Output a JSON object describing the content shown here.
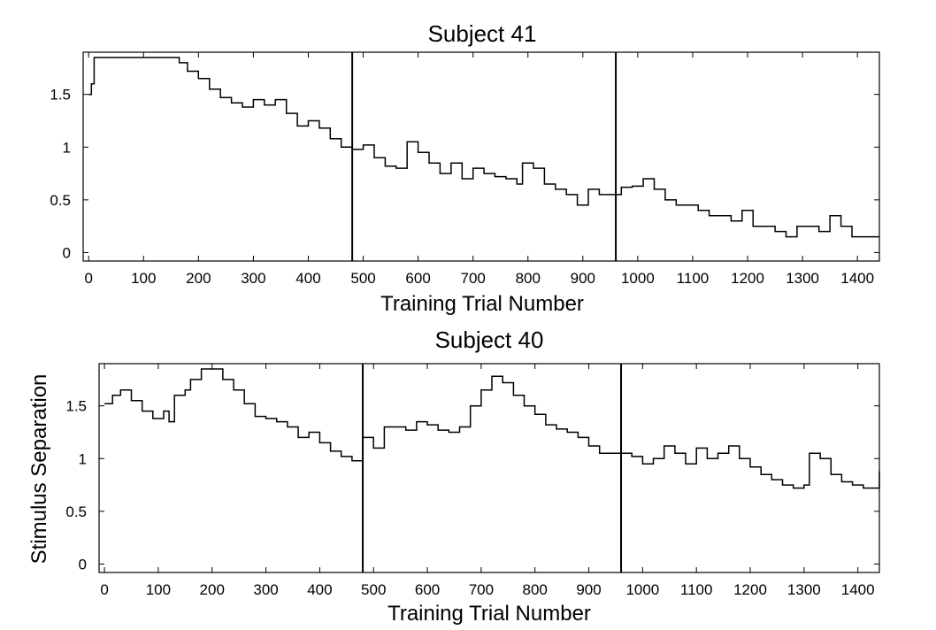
{
  "chart_data": [
    {
      "type": "line",
      "title": "Subject 41",
      "xlabel": "Training Trial Number",
      "ylabel": "",
      "xlim": [
        -10,
        1440
      ],
      "ylim": [
        -0.08,
        1.9
      ],
      "xticks": [
        0,
        100,
        200,
        300,
        400,
        500,
        600,
        700,
        800,
        900,
        1000,
        1100,
        1200,
        1300,
        1400
      ],
      "xtick_labels": [
        "0",
        "100",
        "200",
        "300",
        "400",
        "500",
        "600",
        "700",
        "800",
        "900",
        "1000",
        "1100",
        "1200",
        "1300",
        "1400"
      ],
      "yticks": [
        0,
        0.5,
        1,
        1.5
      ],
      "ytick_labels": [
        "0",
        "0.5",
        "1",
        "1.5"
      ],
      "vertical_lines": [
        480,
        960
      ],
      "series": [
        {
          "x": [
            0,
            5,
            10,
            50,
            100,
            150,
            165,
            180,
            200,
            220,
            240,
            260,
            280,
            300,
            320,
            340,
            360,
            380,
            400,
            420,
            440,
            460,
            480,
            500,
            520,
            540,
            560,
            580,
            600,
            620,
            640,
            660,
            680,
            700,
            720,
            740,
            760,
            780,
            790,
            810,
            830,
            850,
            870,
            890,
            910,
            930,
            950,
            970,
            990,
            1010,
            1030,
            1050,
            1070,
            1090,
            1110,
            1130,
            1150,
            1170,
            1190,
            1210,
            1230,
            1250,
            1270,
            1290,
            1310,
            1330,
            1350,
            1370,
            1390,
            1410,
            1440
          ],
          "y": [
            1.5,
            1.6,
            1.85,
            1.85,
            1.85,
            1.85,
            1.8,
            1.72,
            1.65,
            1.55,
            1.47,
            1.42,
            1.38,
            1.45,
            1.4,
            1.45,
            1.32,
            1.2,
            1.25,
            1.18,
            1.08,
            1.0,
            0.98,
            1.02,
            0.9,
            0.82,
            0.8,
            1.05,
            0.95,
            0.85,
            0.75,
            0.85,
            0.7,
            0.8,
            0.75,
            0.72,
            0.7,
            0.65,
            0.85,
            0.8,
            0.65,
            0.6,
            0.55,
            0.45,
            0.6,
            0.55,
            0.55,
            0.62,
            0.63,
            0.7,
            0.6,
            0.5,
            0.45,
            0.45,
            0.4,
            0.35,
            0.35,
            0.3,
            0.4,
            0.25,
            0.25,
            0.2,
            0.15,
            0.25,
            0.25,
            0.2,
            0.35,
            0.25,
            0.15,
            0.15,
            0.15
          ]
        }
      ]
    },
    {
      "type": "line",
      "title": "Subject 40",
      "xlabel": "Training Trial Number",
      "ylabel": "Stimulus Separation",
      "xlim": [
        -10,
        1440
      ],
      "ylim": [
        -0.08,
        1.9
      ],
      "xticks": [
        0,
        100,
        200,
        300,
        400,
        500,
        600,
        700,
        800,
        900,
        1000,
        1100,
        1200,
        1300,
        1400
      ],
      "xtick_labels": [
        "0",
        "100",
        "200",
        "300",
        "400",
        "500",
        "600",
        "700",
        "800",
        "900",
        "1000",
        "1100",
        "1200",
        "1300",
        "1400"
      ],
      "yticks": [
        0,
        0.5,
        1,
        1.5
      ],
      "ytick_labels": [
        "0",
        "0.5",
        "1",
        "1.5"
      ],
      "vertical_lines": [
        480,
        960
      ],
      "series": [
        {
          "x": [
            0,
            15,
            30,
            50,
            70,
            90,
            110,
            120,
            130,
            150,
            160,
            180,
            200,
            220,
            240,
            260,
            280,
            300,
            320,
            340,
            360,
            380,
            400,
            420,
            440,
            460,
            480,
            500,
            520,
            540,
            560,
            580,
            600,
            620,
            640,
            660,
            680,
            700,
            720,
            740,
            760,
            780,
            800,
            820,
            840,
            860,
            880,
            900,
            920,
            940,
            960,
            980,
            1000,
            1020,
            1040,
            1060,
            1080,
            1100,
            1120,
            1140,
            1160,
            1180,
            1200,
            1220,
            1240,
            1260,
            1280,
            1300,
            1310,
            1330,
            1350,
            1370,
            1390,
            1410,
            1430,
            1440
          ],
          "y": [
            1.52,
            1.6,
            1.65,
            1.55,
            1.45,
            1.38,
            1.45,
            1.35,
            1.6,
            1.65,
            1.75,
            1.85,
            1.85,
            1.75,
            1.65,
            1.52,
            1.4,
            1.38,
            1.35,
            1.3,
            1.2,
            1.25,
            1.15,
            1.07,
            1.02,
            0.98,
            1.2,
            1.1,
            1.3,
            1.3,
            1.27,
            1.35,
            1.32,
            1.27,
            1.25,
            1.3,
            1.5,
            1.65,
            1.78,
            1.72,
            1.6,
            1.5,
            1.42,
            1.32,
            1.28,
            1.25,
            1.2,
            1.12,
            1.05,
            1.05,
            1.05,
            1.02,
            0.95,
            1.0,
            1.12,
            1.05,
            0.95,
            1.1,
            1.0,
            1.05,
            1.12,
            1.0,
            0.92,
            0.85,
            0.8,
            0.75,
            0.72,
            0.75,
            1.05,
            1.0,
            0.85,
            0.78,
            0.75,
            0.72,
            0.72,
            0.88
          ]
        }
      ]
    }
  ]
}
